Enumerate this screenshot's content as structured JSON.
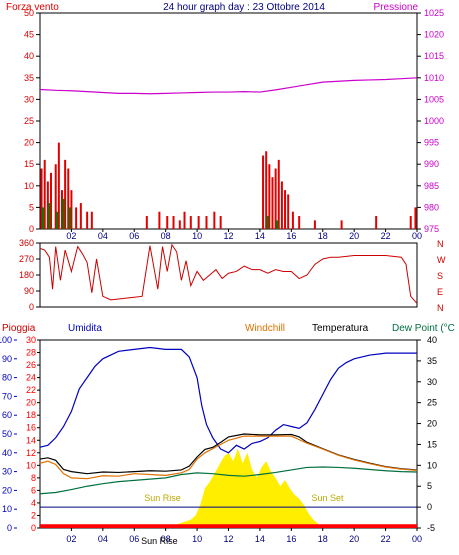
{
  "colors": {
    "wind": "#e00000",
    "gust": "#008000",
    "dir_wind": "#0000c0",
    "pressure": "#cc00cc",
    "direction": "#cc0000",
    "humidity": "#0000c0",
    "temperature": "#000000",
    "windchill": "#e07000",
    "dewpoint": "#007040",
    "solar": "#ffee00",
    "rain": "#ff0000",
    "frame": "#000000",
    "grid_text": "#000080"
  },
  "chart_data": [
    {
      "type": "line",
      "title": "24 hour graph day : 23 Ottobre 2014",
      "left_label": "Forza vento",
      "right_label": "Pressione",
      "x_ticks": [
        "02",
        "04",
        "06",
        "08",
        "10",
        "12",
        "14",
        "16",
        "18",
        "20",
        "22",
        "00"
      ],
      "y_left_ticks": [
        "0",
        "5",
        "10",
        "15",
        "20",
        "25",
        "30",
        "35",
        "40",
        "45",
        "50"
      ],
      "y_left_range": [
        0,
        50
      ],
      "y_right_ticks": [
        "975",
        "980",
        "985",
        "990",
        "995",
        "1000",
        "1005",
        "1010",
        "1015",
        "1020",
        "1025"
      ],
      "y_right_range": [
        975,
        1025
      ],
      "series": [
        {
          "name": "Pressione",
          "axis": "right",
          "x": [
            0,
            1,
            2,
            3,
            4,
            5,
            6,
            7,
            8,
            9,
            10,
            11,
            12,
            13,
            14,
            15,
            16,
            17,
            18,
            19,
            20,
            21,
            22,
            23,
            24
          ],
          "values": [
            1007.3,
            1007.1,
            1007.0,
            1006.8,
            1006.6,
            1006.4,
            1006.4,
            1006.3,
            1006.4,
            1006.5,
            1006.6,
            1006.7,
            1006.7,
            1006.8,
            1006.7,
            1007.2,
            1007.8,
            1008.4,
            1009.0,
            1009.2,
            1009.4,
            1009.5,
            1009.6,
            1009.8,
            1010.0
          ]
        },
        {
          "name": "Forza vento",
          "axis": "left",
          "type": "bar",
          "x": [
            0.1,
            0.3,
            0.5,
            0.7,
            1.0,
            1.2,
            1.4,
            1.6,
            1.8,
            2.0,
            2.3,
            2.6,
            3.0,
            3.3,
            6.8,
            7.6,
            8.1,
            8.5,
            8.9,
            9.2,
            9.6,
            10.1,
            10.6,
            11.1,
            11.5,
            14.2,
            14.4,
            14.6,
            14.8,
            15.0,
            15.2,
            15.4,
            15.6,
            15.8,
            16.1,
            16.5,
            17.5,
            19.2,
            21.4,
            23.6,
            23.9
          ],
          "values": [
            14,
            16,
            11,
            13,
            15,
            20,
            9,
            16,
            14,
            9,
            5,
            6,
            4,
            4,
            3,
            4,
            3,
            3,
            2,
            4,
            3,
            3,
            3,
            4,
            3,
            17,
            18,
            15,
            12,
            14,
            16,
            11,
            9,
            8,
            4,
            3,
            2,
            2,
            3,
            3,
            5
          ]
        },
        {
          "name": "Raffica",
          "axis": "left",
          "type": "bar",
          "x": [
            0.2,
            0.6,
            1.1,
            1.5,
            1.9,
            14.5,
            15.1
          ],
          "values": [
            5,
            6,
            4,
            7,
            5,
            3,
            2
          ]
        }
      ]
    },
    {
      "type": "line",
      "y_left_ticks": [
        "0",
        "90",
        "180",
        "270",
        "360"
      ],
      "y_left_range": [
        0,
        360
      ],
      "y_right_labels": [
        "N",
        "W",
        "S",
        "E",
        "N"
      ],
      "series": [
        {
          "name": "Direzione",
          "x": [
            0,
            0.3,
            0.6,
            0.8,
            1.0,
            1.3,
            1.6,
            2.0,
            2.4,
            2.7,
            3.0,
            3.3,
            3.6,
            4.0,
            4.5,
            5.0,
            5.5,
            6.0,
            6.5,
            7.0,
            7.5,
            7.8,
            8.1,
            8.4,
            8.7,
            9.0,
            9.3,
            9.6,
            10.0,
            10.4,
            10.8,
            11.2,
            11.6,
            12.0,
            12.5,
            13.0,
            13.5,
            14.0,
            14.5,
            15.0,
            15.5,
            16.0,
            16.5,
            17.0,
            17.5,
            18.0,
            18.5,
            19.0,
            20.0,
            21.0,
            22.0,
            22.5,
            23.0,
            23.3,
            23.6,
            24.0
          ],
          "values": [
            330,
            320,
            280,
            100,
            340,
            150,
            320,
            200,
            340,
            300,
            250,
            80,
            270,
            60,
            40,
            45,
            50,
            55,
            60,
            345,
            100,
            340,
            200,
            350,
            310,
            150,
            260,
            120,
            200,
            150,
            180,
            210,
            160,
            190,
            200,
            230,
            210,
            210,
            190,
            210,
            200,
            200,
            160,
            180,
            240,
            270,
            280,
            280,
            290,
            290,
            290,
            285,
            280,
            240,
            60,
            20
          ]
        }
      ]
    },
    {
      "type": "line",
      "labels": {
        "rain": "Pioggia",
        "humidity": "Umidita",
        "windchill": "Windchill",
        "temperature": "Temperatura",
        "dewpoint": "Dew Point (°C"
      },
      "x_ticks": [
        "02",
        "04",
        "06",
        "08",
        "10",
        "12",
        "14",
        "16",
        "18",
        "20",
        "22",
        "00"
      ],
      "y_left1_ticks": [
        "0",
        "10",
        "20",
        "30",
        "40",
        "50",
        "60",
        "70",
        "80",
        "90",
        "100"
      ],
      "y_left1_range": [
        0,
        100
      ],
      "y_left2_ticks": [
        "0",
        "2",
        "4",
        "6",
        "8",
        "10",
        "12",
        "14",
        "16",
        "18",
        "20",
        "22",
        "24",
        "26",
        "28",
        "30"
      ],
      "y_left2_range": [
        0,
        30
      ],
      "y_right_ticks": [
        "-5",
        "0",
        "5",
        "10",
        "15",
        "20",
        "25",
        "30",
        "35",
        "40"
      ],
      "y_right_range": [
        -5,
        40
      ],
      "annotations": [
        {
          "text": "Sun Rise",
          "x": 7.8
        },
        {
          "text": "Sun Set",
          "x": 18.3
        },
        {
          "text": "Sun Rise",
          "x": 7.6,
          "bottom": true
        }
      ],
      "series": [
        {
          "name": "Umidita",
          "axis": "left1",
          "x": [
            0,
            0.5,
            1.0,
            1.5,
            2.0,
            2.5,
            3.0,
            3.5,
            4.0,
            5.0,
            6.0,
            7.0,
            8.0,
            9.0,
            9.5,
            10.0,
            10.3,
            10.6,
            11.0,
            11.5,
            12.0,
            12.5,
            13.0,
            13.5,
            14.0,
            14.5,
            15.0,
            15.5,
            16.0,
            16.5,
            17.0,
            17.5,
            18.0,
            18.5,
            19.0,
            19.5,
            20.0,
            21.0,
            22.0,
            23.0,
            24.0
          ],
          "values": [
            43,
            44,
            48,
            54,
            62,
            74,
            80,
            86,
            90,
            94,
            95,
            96,
            95,
            95,
            91,
            80,
            65,
            55,
            48,
            42,
            40,
            44,
            42,
            45,
            46,
            48,
            52,
            55,
            54,
            53,
            56,
            63,
            71,
            79,
            85,
            88,
            90,
            92,
            93,
            93,
            93
          ]
        },
        {
          "name": "Temperatura",
          "axis": "right",
          "x": [
            0,
            0.5,
            1.0,
            1.5,
            2.0,
            3.0,
            4.0,
            5.0,
            6.0,
            7.0,
            8.0,
            9.0,
            9.5,
            10.0,
            10.5,
            11.0,
            11.5,
            12.0,
            13.0,
            14.0,
            15.0,
            16.0,
            16.5,
            17.0,
            18.0,
            19.0,
            20.0,
            21.0,
            22.0,
            23.0,
            24.0
          ],
          "values": [
            11.5,
            11.8,
            11.2,
            9.0,
            8.5,
            8.0,
            8.4,
            8.3,
            8.5,
            8.7,
            8.6,
            8.9,
            9.8,
            12.0,
            13.8,
            14.3,
            15.5,
            16.8,
            17.5,
            17.3,
            17.3,
            17.4,
            16.8,
            15.5,
            14.0,
            12.5,
            11.4,
            10.5,
            9.7,
            9.2,
            8.9
          ]
        },
        {
          "name": "Windchill",
          "axis": "right",
          "x": [
            0,
            0.5,
            1.0,
            1.5,
            2.0,
            3.0,
            4.0,
            5.0,
            6.0,
            7.0,
            8.0,
            9.0,
            9.5,
            10.0,
            10.5,
            11.0,
            12.0,
            13.0,
            14.0,
            15.0,
            16.0,
            17.0,
            18.0,
            19.0,
            20.0,
            21.0,
            22.0,
            23.0,
            24.0
          ],
          "values": [
            10.5,
            11.0,
            10.2,
            8.0,
            7.0,
            6.8,
            7.5,
            7.4,
            8.0,
            7.8,
            7.6,
            8.2,
            9.0,
            11.5,
            13.0,
            14.0,
            16.0,
            17.0,
            17.0,
            17.0,
            17.0,
            15.3,
            13.9,
            12.4,
            11.3,
            10.4,
            9.6,
            9.1,
            8.8
          ]
        },
        {
          "name": "Dew Point (°C",
          "axis": "right",
          "x": [
            0,
            1,
            2,
            3,
            4,
            5,
            6,
            7,
            8,
            9,
            10,
            11,
            12,
            13,
            14,
            15,
            16,
            17,
            18,
            19,
            20,
            21,
            22,
            23,
            24
          ],
          "values": [
            3.2,
            3.5,
            4.2,
            5.0,
            5.6,
            6.1,
            6.4,
            6.7,
            7.0,
            7.8,
            8.2,
            8.0,
            7.6,
            7.4,
            7.8,
            8.3,
            8.9,
            9.5,
            9.6,
            9.5,
            9.3,
            9.0,
            8.7,
            8.5,
            8.4
          ]
        },
        {
          "name": "Radiazione",
          "axis": "right",
          "type": "area",
          "x": [
            7.6,
            8.2,
            8.8,
            9.2,
            9.6,
            9.9,
            10.2,
            10.5,
            10.8,
            11.1,
            11.4,
            11.7,
            12.0,
            12.3,
            12.6,
            12.9,
            13.2,
            13.5,
            13.8,
            14.1,
            14.4,
            14.7,
            15.0,
            15.3,
            15.6,
            15.9,
            16.2,
            16.5,
            16.8,
            17.1,
            17.4,
            17.7,
            18.0,
            18.3
          ],
          "values": [
            -5,
            -4.6,
            -4.0,
            -3.5,
            -3.0,
            -2.0,
            0.5,
            4.5,
            6.0,
            8.0,
            10.0,
            12.0,
            13.0,
            11.0,
            14.0,
            10.5,
            13.0,
            9.0,
            7.0,
            9.5,
            11.0,
            8.5,
            7.0,
            5.0,
            6.5,
            4.5,
            3.0,
            2.0,
            0.5,
            -1.5,
            -3.0,
            -4.0,
            -4.6,
            -5
          ]
        },
        {
          "name": "Pioggia",
          "axis": "left2",
          "type": "bar",
          "x": [
            0,
            24
          ],
          "values": [
            0.6,
            0.6
          ]
        }
      ]
    }
  ]
}
